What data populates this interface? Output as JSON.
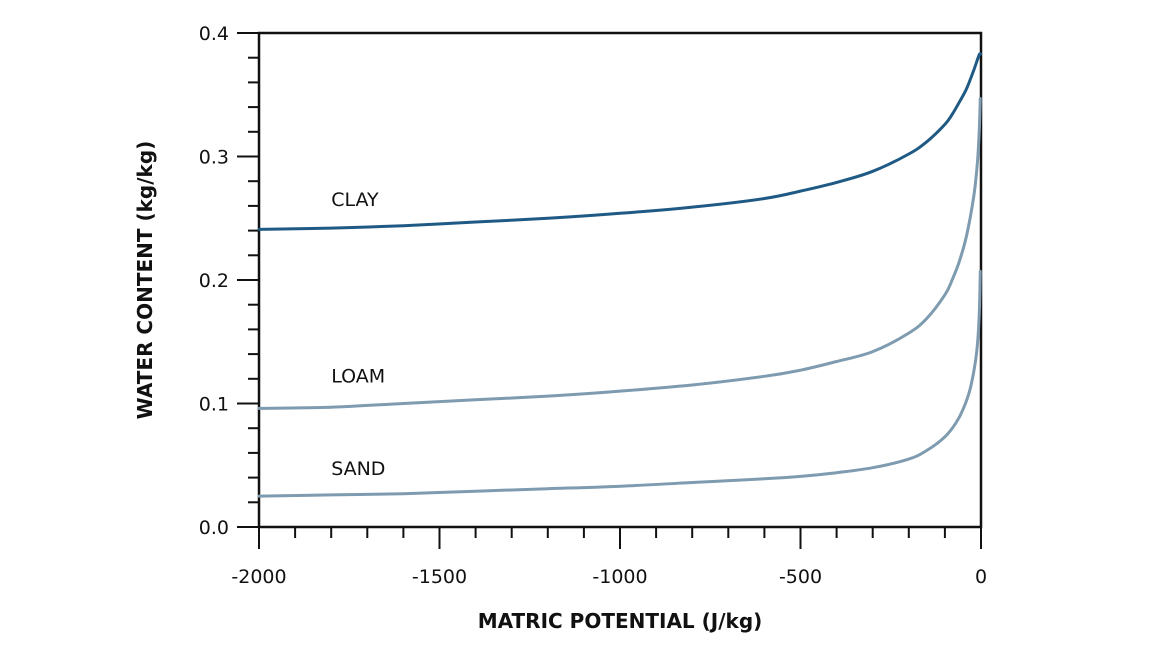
{
  "chart_data": {
    "type": "line",
    "title": "",
    "xlabel": "MATRIC POTENTIAL (J/kg)",
    "ylabel": "WATER CONTENT (kg/kg)",
    "xlim": [
      -2000,
      0
    ],
    "ylim": [
      0,
      0.4
    ],
    "x_ticks": [
      -2000,
      -1500,
      -1000,
      -500,
      0
    ],
    "x_tick_labels": [
      "-2000",
      "-1500",
      "-1000",
      "-500",
      "0"
    ],
    "y_ticks": [
      0,
      0.1,
      0.2,
      0.3,
      0.4
    ],
    "y_tick_labels": [
      "0.0",
      "0.1",
      "0.2",
      "0.3",
      "0.4"
    ],
    "x_minor_step": 100,
    "y_minor_step": 0.02,
    "grid": false,
    "legend": "none",
    "series": [
      {
        "name": "CLAY",
        "color": "#1f5a85",
        "x": [
          -2000,
          -1800,
          -1600,
          -1400,
          -1200,
          -1000,
          -800,
          -600,
          -500,
          -400,
          -300,
          -200,
          -150,
          -100,
          -80,
          -60,
          -40,
          -20,
          -8,
          -4,
          -1
        ],
        "y": [
          0.241,
          0.242,
          0.244,
          0.247,
          0.25,
          0.254,
          0.259,
          0.266,
          0.272,
          0.279,
          0.288,
          0.302,
          0.312,
          0.326,
          0.334,
          0.344,
          0.355,
          0.37,
          0.38,
          0.383,
          0.383
        ]
      },
      {
        "name": "LOAM",
        "color": "#7e9bb0",
        "x": [
          -2000,
          -1800,
          -1600,
          -1400,
          -1200,
          -1000,
          -800,
          -600,
          -500,
          -400,
          -300,
          -200,
          -150,
          -100,
          -80,
          -60,
          -40,
          -20,
          -10,
          -5,
          -2
        ],
        "y": [
          0.096,
          0.097,
          0.1,
          0.103,
          0.106,
          0.11,
          0.115,
          0.122,
          0.127,
          0.134,
          0.142,
          0.157,
          0.169,
          0.188,
          0.2,
          0.215,
          0.236,
          0.268,
          0.295,
          0.32,
          0.347
        ]
      },
      {
        "name": "SAND",
        "color": "#7e9bb0",
        "x": [
          -2000,
          -1800,
          -1600,
          -1400,
          -1200,
          -1000,
          -800,
          -600,
          -500,
          -400,
          -300,
          -200,
          -150,
          -100,
          -70,
          -50,
          -30,
          -15,
          -8,
          -4,
          -2
        ],
        "y": [
          0.025,
          0.026,
          0.027,
          0.029,
          0.031,
          0.033,
          0.036,
          0.039,
          0.041,
          0.044,
          0.048,
          0.055,
          0.062,
          0.073,
          0.084,
          0.095,
          0.112,
          0.135,
          0.155,
          0.18,
          0.207
        ]
      }
    ],
    "annotations": [
      {
        "text": "CLAY",
        "x": -1800,
        "y": 0.26
      },
      {
        "text": "LOAM",
        "x": -1800,
        "y": 0.117
      },
      {
        "text": "SAND",
        "x": -1800,
        "y": 0.042
      }
    ]
  }
}
